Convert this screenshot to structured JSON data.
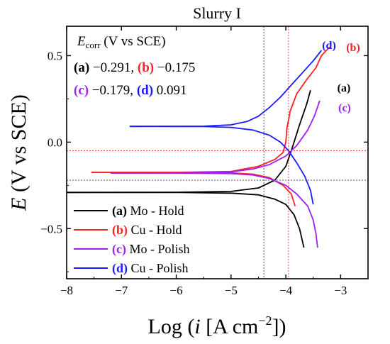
{
  "chart_data": {
    "type": "line",
    "title": "Slurry I",
    "xlabel": "Log (i [A cm⁻²])",
    "ylabel": "E (V vs SCE)",
    "xlim": [
      -8,
      -2.5
    ],
    "ylim": [
      -0.79,
      0.67
    ],
    "xticks": [
      "−8",
      "−7",
      "−6",
      "−5",
      "−4",
      "−3"
    ],
    "xtick_values": [
      -8,
      -7,
      -6,
      -5,
      -4,
      -3
    ],
    "yticks": [
      "−0.5",
      "0.0",
      "0.5"
    ],
    "ytick_values": [
      -0.5,
      0.0,
      0.5
    ],
    "annotation": {
      "heading": "E",
      "heading_sub": "corr",
      "heading_rest": " (V vs SCE)",
      "line1": [
        {
          "tag": "(a)",
          "value": "−0.291,",
          "color": "#000000"
        },
        {
          "tag": "(b)",
          "value": "−0.175",
          "color": "#ff2020"
        }
      ],
      "line2": [
        {
          "tag": "(c)",
          "value": "−0.179,",
          "color": "#a020f0"
        },
        {
          "tag": "(d)",
          "value": "0.091",
          "color": "#1a1aff"
        }
      ]
    },
    "ref_lines": {
      "vertical": [
        {
          "x": -4.4,
          "color": "#555555"
        },
        {
          "x": -3.95,
          "color": "#ff4444"
        }
      ],
      "horizontal": [
        {
          "y": -0.05,
          "color": "#ff4444"
        },
        {
          "y": -0.22,
          "color": "#555555"
        }
      ]
    },
    "legend_position": "bottom-left",
    "series": [
      {
        "tag": "(a)",
        "label": "Mo - Hold",
        "color": "#000000",
        "cathodic": [
          [
            -8.0,
            -0.291
          ],
          [
            -6.0,
            -0.291
          ],
          [
            -5.0,
            -0.295
          ],
          [
            -4.5,
            -0.305
          ],
          [
            -4.2,
            -0.33
          ],
          [
            -4.0,
            -0.36
          ],
          [
            -3.85,
            -0.42
          ],
          [
            -3.75,
            -0.5
          ],
          [
            -3.67,
            -0.61
          ]
        ],
        "anodic": [
          [
            -8.0,
            -0.291
          ],
          [
            -6.0,
            -0.29
          ],
          [
            -5.0,
            -0.285
          ],
          [
            -4.5,
            -0.265
          ],
          [
            -4.2,
            -0.22
          ],
          [
            -4.0,
            -0.14
          ],
          [
            -3.9,
            -0.05
          ],
          [
            -3.75,
            0.1
          ],
          [
            -3.62,
            0.22
          ],
          [
            -3.55,
            0.3
          ]
        ]
      },
      {
        "tag": "(b)",
        "label": "Cu - Hold",
        "color": "#ff2020",
        "cathodic": [
          [
            -7.55,
            -0.175
          ],
          [
            -6.0,
            -0.175
          ],
          [
            -5.0,
            -0.178
          ],
          [
            -4.6,
            -0.185
          ],
          [
            -4.3,
            -0.205
          ],
          [
            -4.05,
            -0.25
          ],
          [
            -3.9,
            -0.3
          ],
          [
            -3.83,
            -0.37
          ]
        ],
        "anodic": [
          [
            -7.55,
            -0.175
          ],
          [
            -6.0,
            -0.175
          ],
          [
            -5.0,
            -0.17
          ],
          [
            -4.5,
            -0.14
          ],
          [
            -4.2,
            -0.1
          ],
          [
            -4.05,
            -0.06
          ],
          [
            -4.0,
            0.0
          ],
          [
            -3.98,
            0.08
          ],
          [
            -3.92,
            0.18
          ],
          [
            -3.8,
            0.28
          ],
          [
            -3.6,
            0.37
          ],
          [
            -3.45,
            0.43
          ],
          [
            -3.35,
            0.5
          ],
          [
            -3.2,
            0.55
          ]
        ]
      },
      {
        "tag": "(c)",
        "label": "Mo - Polish",
        "color": "#a020f0",
        "cathodic": [
          [
            -7.2,
            -0.179
          ],
          [
            -6.0,
            -0.179
          ],
          [
            -5.0,
            -0.182
          ],
          [
            -4.6,
            -0.19
          ],
          [
            -4.3,
            -0.21
          ],
          [
            -4.0,
            -0.25
          ],
          [
            -3.8,
            -0.3
          ],
          [
            -3.6,
            -0.37
          ],
          [
            -3.5,
            -0.45
          ],
          [
            -3.45,
            -0.53
          ],
          [
            -3.42,
            -0.61
          ]
        ],
        "anodic": [
          [
            -7.2,
            -0.179
          ],
          [
            -6.0,
            -0.178
          ],
          [
            -5.0,
            -0.172
          ],
          [
            -4.6,
            -0.155
          ],
          [
            -4.3,
            -0.13
          ],
          [
            -4.0,
            -0.08
          ],
          [
            -3.8,
            -0.02
          ],
          [
            -3.6,
            0.07
          ],
          [
            -3.48,
            0.15
          ],
          [
            -3.38,
            0.24
          ]
        ]
      },
      {
        "tag": "(d)",
        "label": "Cu - Polish",
        "color": "#1a1aff",
        "cathodic": [
          [
            -6.85,
            0.091
          ],
          [
            -5.5,
            0.09
          ],
          [
            -5.0,
            0.085
          ],
          [
            -4.6,
            0.07
          ],
          [
            -4.3,
            0.04
          ],
          [
            -4.1,
            0.0
          ],
          [
            -3.95,
            -0.05
          ],
          [
            -3.8,
            -0.12
          ],
          [
            -3.65,
            -0.2
          ],
          [
            -3.55,
            -0.28
          ],
          [
            -3.5,
            -0.36
          ]
        ],
        "anodic": [
          [
            -6.85,
            0.091
          ],
          [
            -5.5,
            0.092
          ],
          [
            -5.0,
            0.1
          ],
          [
            -4.7,
            0.12
          ],
          [
            -4.5,
            0.15
          ],
          [
            -4.3,
            0.2
          ],
          [
            -4.1,
            0.26
          ],
          [
            -3.9,
            0.33
          ],
          [
            -3.7,
            0.4
          ],
          [
            -3.5,
            0.47
          ],
          [
            -3.35,
            0.53
          ]
        ]
      }
    ]
  }
}
